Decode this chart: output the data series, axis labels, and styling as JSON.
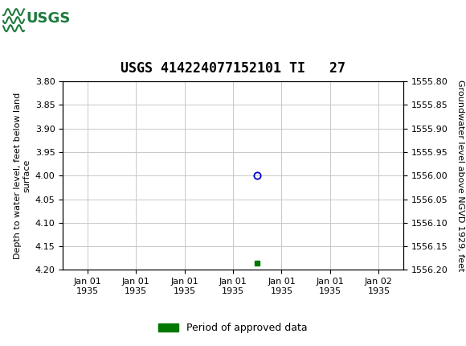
{
  "title": "USGS 414224077152101 TI   27",
  "title_fontsize": 12,
  "ylabel_left": "Depth to water level, feet below land\nsurface",
  "ylabel_right": "Groundwater level above NGVD 1929, feet",
  "ylim_left": [
    3.8,
    4.2
  ],
  "ylim_right": [
    1555.8,
    1556.2
  ],
  "left_yticks": [
    3.8,
    3.85,
    3.9,
    3.95,
    4.0,
    4.05,
    4.1,
    4.15,
    4.2
  ],
  "right_yticks": [
    1555.8,
    1555.85,
    1555.9,
    1555.95,
    1556.0,
    1556.05,
    1556.1,
    1556.15,
    1556.2
  ],
  "pt_circle_depth": 4.0,
  "pt_square_depth": 4.185,
  "point_color_circle": "#0000cc",
  "point_color_square": "#007700",
  "legend_label": "Period of approved data",
  "legend_color": "#007700",
  "header_color": "#1e7a3c",
  "grid_color": "#c8c8c8",
  "tick_fontsize": 8,
  "ylabel_fontsize": 8,
  "xtick_labels": [
    "Jan 01\n1935",
    "Jan 01\n1935",
    "Jan 01\n1935",
    "Jan 01\n1935",
    "Jan 01\n1935",
    "Jan 01\n1935",
    "Jan 02\n1935"
  ]
}
